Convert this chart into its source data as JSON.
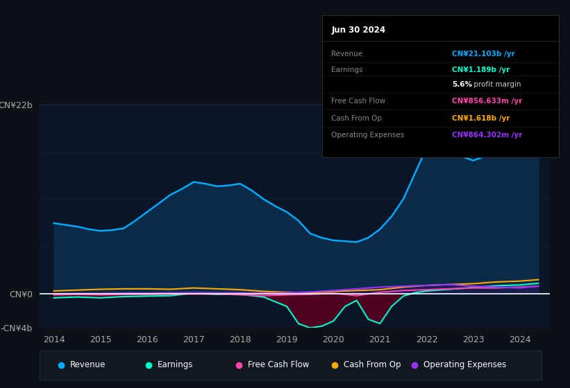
{
  "background_color": "#0d1117",
  "chart_bg": "#0a1628",
  "ylim": [
    -4,
    22
  ],
  "xlim": [
    2013.7,
    2024.65
  ],
  "xlabel_ticks": [
    2014,
    2015,
    2016,
    2017,
    2018,
    2019,
    2020,
    2021,
    2022,
    2023,
    2024
  ],
  "revenue": {
    "x": [
      2014,
      2014.25,
      2014.5,
      2014.75,
      2015,
      2015.25,
      2015.5,
      2015.75,
      2016,
      2016.25,
      2016.5,
      2016.75,
      2017,
      2017.25,
      2017.5,
      2017.75,
      2018,
      2018.25,
      2018.5,
      2018.75,
      2019,
      2019.25,
      2019.5,
      2019.75,
      2020,
      2020.25,
      2020.5,
      2020.75,
      2021,
      2021.25,
      2021.5,
      2021.75,
      2022,
      2022.25,
      2022.5,
      2022.75,
      2023,
      2023.25,
      2023.5,
      2023.75,
      2024,
      2024.4
    ],
    "y": [
      8.2,
      8.0,
      7.8,
      7.5,
      7.3,
      7.4,
      7.6,
      8.5,
      9.5,
      10.5,
      11.5,
      12.2,
      13.0,
      12.8,
      12.5,
      12.6,
      12.8,
      12.0,
      11.0,
      10.2,
      9.5,
      8.5,
      7.0,
      6.5,
      6.2,
      6.1,
      6.0,
      6.5,
      7.5,
      9.0,
      11.0,
      14.0,
      17.0,
      17.2,
      16.5,
      16.0,
      15.5,
      16.0,
      17.0,
      19.0,
      20.5,
      21.1
    ],
    "color": "#00aaff",
    "fill_color": "#0a2a4a",
    "linewidth": 1.8
  },
  "earnings": {
    "x": [
      2014,
      2014.5,
      2015,
      2015.5,
      2016,
      2016.5,
      2017,
      2017.5,
      2018,
      2018.5,
      2019,
      2019.25,
      2019.5,
      2019.75,
      2020,
      2020.25,
      2020.5,
      2020.75,
      2021,
      2021.25,
      2021.5,
      2021.75,
      2022,
      2022.5,
      2023,
      2023.5,
      2024,
      2024.4
    ],
    "y": [
      -0.5,
      -0.4,
      -0.5,
      -0.35,
      -0.3,
      -0.25,
      0.05,
      -0.1,
      -0.1,
      -0.4,
      -1.5,
      -3.5,
      -4.0,
      -3.8,
      -3.2,
      -1.5,
      -0.8,
      -3.0,
      -3.5,
      -1.5,
      -0.3,
      0.1,
      0.3,
      0.5,
      0.7,
      0.9,
      1.0,
      1.19
    ],
    "color": "#00ffcc",
    "linewidth": 1.5
  },
  "free_cash_flow": {
    "x": [
      2014,
      2014.5,
      2015,
      2015.5,
      2016,
      2016.5,
      2017,
      2017.5,
      2018,
      2018.5,
      2019,
      2019.5,
      2020,
      2020.5,
      2021,
      2021.5,
      2022,
      2022.5,
      2023,
      2023.5,
      2024,
      2024.4
    ],
    "y": [
      -0.15,
      -0.1,
      -0.15,
      -0.1,
      -0.1,
      -0.05,
      -0.05,
      -0.05,
      -0.15,
      -0.25,
      -0.15,
      -0.1,
      0.05,
      -0.25,
      0.15,
      0.35,
      0.45,
      0.55,
      0.65,
      0.65,
      0.75,
      0.856
    ],
    "color": "#ff44aa",
    "linewidth": 1.5
  },
  "cash_from_op": {
    "x": [
      2014,
      2014.5,
      2015,
      2015.5,
      2016,
      2016.5,
      2017,
      2017.5,
      2018,
      2018.5,
      2019,
      2019.5,
      2020,
      2020.5,
      2021,
      2021.5,
      2022,
      2022.5,
      2023,
      2023.5,
      2024,
      2024.4
    ],
    "y": [
      0.3,
      0.4,
      0.5,
      0.55,
      0.55,
      0.5,
      0.65,
      0.55,
      0.45,
      0.25,
      0.15,
      0.1,
      0.25,
      0.35,
      0.45,
      0.75,
      0.95,
      1.05,
      1.15,
      1.35,
      1.45,
      1.618
    ],
    "color": "#ffaa00",
    "linewidth": 1.5
  },
  "operating_expenses": {
    "x": [
      2014,
      2014.5,
      2015,
      2015.5,
      2016,
      2016.5,
      2017,
      2017.5,
      2018,
      2018.5,
      2019,
      2019.5,
      2020,
      2020.5,
      2021,
      2021.5,
      2022,
      2022.5,
      2023,
      2023.5,
      2024,
      2024.4
    ],
    "y": [
      -0.05,
      0.0,
      0.0,
      0.05,
      0.05,
      0.08,
      0.1,
      0.08,
      0.08,
      0.05,
      0.1,
      0.18,
      0.35,
      0.55,
      0.75,
      0.85,
      0.95,
      1.05,
      0.85,
      0.75,
      0.65,
      0.864
    ],
    "color": "#9933ff",
    "linewidth": 1.5
  },
  "legend": [
    {
      "label": "Revenue",
      "color": "#00aaff"
    },
    {
      "label": "Earnings",
      "color": "#00ffcc"
    },
    {
      "label": "Free Cash Flow",
      "color": "#ff44aa"
    },
    {
      "label": "Cash From Op",
      "color": "#ffaa00"
    },
    {
      "label": "Operating Expenses",
      "color": "#9933ff"
    }
  ],
  "info_box": {
    "date": "Jun 30 2024",
    "rows": [
      {
        "label": "Revenue",
        "value": "CN¥21.103b /yr",
        "value_color": "#00aaff"
      },
      {
        "label": "Earnings",
        "value": "CN¥1.189b /yr",
        "value_color": "#00ffcc"
      },
      {
        "label": "",
        "value": "5.6%",
        "value_color": "#ffffff",
        "suffix": " profit margin"
      },
      {
        "label": "Free Cash Flow",
        "value": "CN¥856.633m /yr",
        "value_color": "#ff44aa"
      },
      {
        "label": "Cash From Op",
        "value": "CN¥1.618b /yr",
        "value_color": "#ffaa00"
      },
      {
        "label": "Operating Expenses",
        "value": "CN¥864.302m /yr",
        "value_color": "#9933ff"
      }
    ]
  }
}
